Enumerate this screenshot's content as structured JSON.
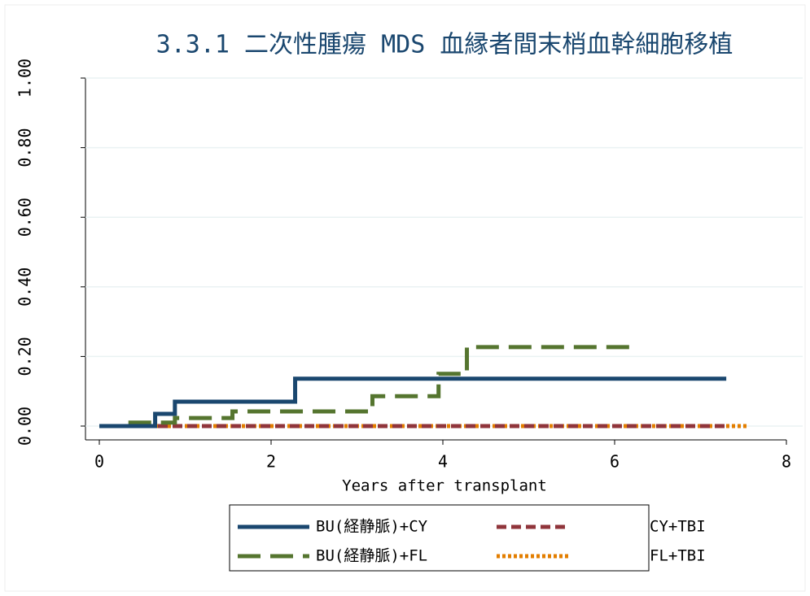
{
  "chart_data": {
    "type": "step",
    "title": "3.3.1 二次性腫瘍 MDS 血縁者間末梢血幹細胞移植",
    "xlabel": "Years after transplant",
    "xlim": [
      0,
      8
    ],
    "xticks": [
      0,
      2,
      4,
      6,
      8
    ],
    "ylim": [
      0,
      1
    ],
    "yticks": [
      {
        "value": 0,
        "label": "0.00"
      },
      {
        "value": 0.2,
        "label": "0.20"
      },
      {
        "value": 0.4,
        "label": "0.40"
      },
      {
        "value": 0.6,
        "label": "0.60"
      },
      {
        "value": 0.8,
        "label": "0.80"
      },
      {
        "value": 1,
        "label": "1.00"
      }
    ],
    "grid": true,
    "legend": "bottom",
    "series": [
      {
        "name": "BU(経静脈)+CY",
        "color": "#1a476f",
        "dash": "solid",
        "x": [
          0,
          0.65,
          0.88,
          2.28,
          7.3
        ],
        "values": [
          0,
          0.035,
          0.07,
          0.136,
          0.136
        ]
      },
      {
        "name": "BU(経静脈)+FL",
        "color": "#55752f",
        "dash": "long",
        "x": [
          0,
          0.33,
          0.88,
          1.55,
          3.18,
          3.95,
          4.28,
          6.2
        ],
        "values": [
          0,
          0.01,
          0.023,
          0.042,
          0.086,
          0.15,
          0.227,
          0.227
        ]
      },
      {
        "name": "CY+TBI",
        "color": "#90353b",
        "dash": "short",
        "x": [
          0,
          7.3
        ],
        "values": [
          0,
          0
        ]
      },
      {
        "name": "FL+TBI",
        "color": "#e37e00",
        "dash": "dot",
        "x": [
          0,
          7.55
        ],
        "values": [
          0,
          0
        ]
      }
    ]
  }
}
